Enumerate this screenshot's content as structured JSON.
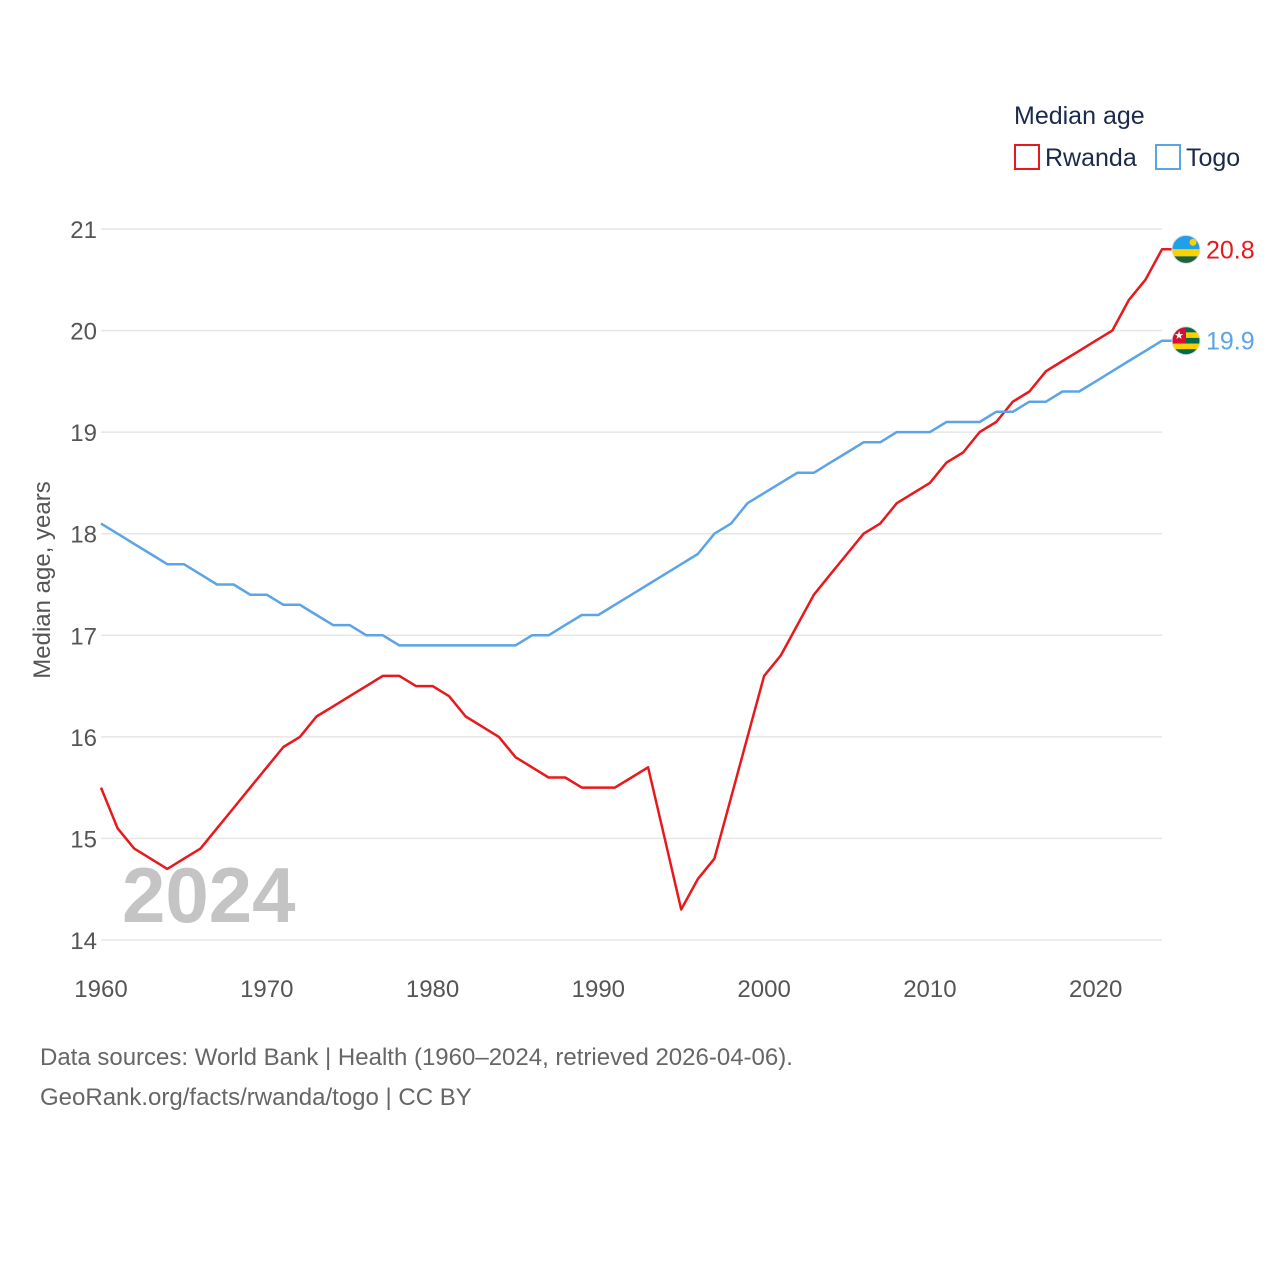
{
  "chart_data": {
    "type": "line",
    "legend_title": "Median age",
    "ylabel": "Median age, years",
    "xlabel": "",
    "year_watermark": "2024",
    "xlim": [
      1960,
      2024
    ],
    "ylim": [
      14,
      21
    ],
    "x_ticks": [
      1960,
      1970,
      1980,
      1990,
      2000,
      2010,
      2020
    ],
    "y_ticks": [
      14,
      15,
      16,
      17,
      18,
      19,
      20,
      21
    ],
    "grid": true,
    "legend_position": "top-right",
    "x": [
      1960,
      1961,
      1962,
      1963,
      1964,
      1965,
      1966,
      1967,
      1968,
      1969,
      1970,
      1971,
      1972,
      1973,
      1974,
      1975,
      1976,
      1977,
      1978,
      1979,
      1980,
      1981,
      1982,
      1983,
      1984,
      1985,
      1986,
      1987,
      1988,
      1989,
      1990,
      1991,
      1992,
      1993,
      1994,
      1995,
      1996,
      1997,
      1998,
      1999,
      2000,
      2001,
      2002,
      2003,
      2004,
      2005,
      2006,
      2007,
      2008,
      2009,
      2010,
      2011,
      2012,
      2013,
      2014,
      2015,
      2016,
      2017,
      2018,
      2019,
      2020,
      2021,
      2022,
      2023,
      2024
    ],
    "series": [
      {
        "name": "Rwanda",
        "color": "#e8191c",
        "end_label": "20.8",
        "flag": "rwanda-flag-icon",
        "values": [
          15.5,
          15.1,
          14.9,
          14.8,
          14.7,
          14.8,
          14.9,
          15.1,
          15.3,
          15.5,
          15.7,
          15.9,
          16.0,
          16.2,
          16.3,
          16.4,
          16.5,
          16.6,
          16.6,
          16.5,
          16.5,
          16.4,
          16.2,
          16.1,
          16.0,
          15.8,
          15.7,
          15.6,
          15.6,
          15.5,
          15.5,
          15.5,
          15.6,
          15.7,
          15.0,
          14.3,
          14.6,
          14.8,
          15.4,
          16.0,
          16.6,
          16.8,
          17.1,
          17.4,
          17.6,
          17.8,
          18.0,
          18.1,
          18.3,
          18.4,
          18.5,
          18.7,
          18.8,
          19.0,
          19.1,
          19.3,
          19.4,
          19.6,
          19.7,
          19.8,
          19.9,
          20.0,
          20.3,
          20.5,
          20.8
        ]
      },
      {
        "name": "Togo",
        "color": "#5ba4e5",
        "end_label": "19.9",
        "flag": "togo-flag-icon",
        "values": [
          18.1,
          18.0,
          17.9,
          17.8,
          17.7,
          17.7,
          17.6,
          17.5,
          17.5,
          17.4,
          17.4,
          17.3,
          17.3,
          17.2,
          17.1,
          17.1,
          17.0,
          17.0,
          16.9,
          16.9,
          16.9,
          16.9,
          16.9,
          16.9,
          16.9,
          16.9,
          17.0,
          17.0,
          17.1,
          17.2,
          17.2,
          17.3,
          17.4,
          17.5,
          17.6,
          17.7,
          17.8,
          18.0,
          18.1,
          18.3,
          18.4,
          18.5,
          18.6,
          18.6,
          18.7,
          18.8,
          18.9,
          18.9,
          19.0,
          19.0,
          19.0,
          19.1,
          19.1,
          19.1,
          19.2,
          19.2,
          19.3,
          19.3,
          19.4,
          19.4,
          19.5,
          19.6,
          19.7,
          19.8,
          19.9
        ]
      }
    ]
  },
  "footer": {
    "sources": "Data sources: World Bank | Health (1960–2024, retrieved 2026-04-06).",
    "attribution": "GeoRank.org/facts/rwanda/togo | CC BY"
  }
}
